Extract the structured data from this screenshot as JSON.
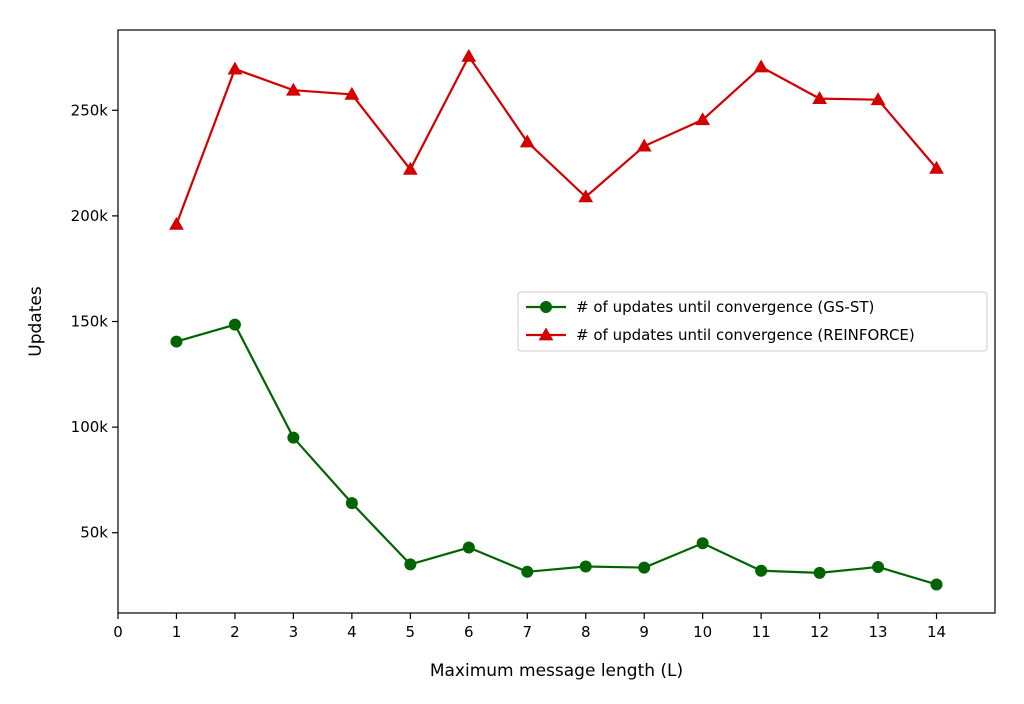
{
  "chart_data": {
    "type": "line",
    "title": "",
    "xlabel": "Maximum message length (L)",
    "ylabel": "Updates",
    "xlim": [
      0,
      15
    ],
    "ylim": [
      12000,
      288000
    ],
    "x_ticks": [
      0,
      1,
      2,
      3,
      4,
      5,
      6,
      7,
      8,
      9,
      10,
      11,
      12,
      13,
      14
    ],
    "x_tick_labels": [
      "0",
      "1",
      "2",
      "3",
      "4",
      "5",
      "6",
      "7",
      "8",
      "9",
      "10",
      "11",
      "12",
      "13",
      "14"
    ],
    "y_ticks": [
      50000,
      100000,
      150000,
      200000,
      250000
    ],
    "y_tick_labels": [
      "50k",
      "100k",
      "150k",
      "200k",
      "250k"
    ],
    "grid": false,
    "legend_position": "center-right",
    "x": [
      1,
      2,
      3,
      4,
      5,
      6,
      7,
      8,
      9,
      10,
      11,
      12,
      13,
      14
    ],
    "series": [
      {
        "name": "# of updates until convergence (GS-ST)",
        "color": "#006400",
        "marker": "circle",
        "values": [
          140500,
          148500,
          95000,
          64000,
          35000,
          43000,
          31500,
          34000,
          33500,
          45000,
          32000,
          31000,
          33800,
          25500
        ]
      },
      {
        "name": "# of updates until convergence (REINFORCE)",
        "color": "#d40000",
        "marker": "triangle",
        "values": [
          196000,
          269500,
          259500,
          257500,
          222000,
          275500,
          235000,
          209000,
          233000,
          245500,
          270500,
          255500,
          255000,
          222500
        ]
      }
    ]
  }
}
